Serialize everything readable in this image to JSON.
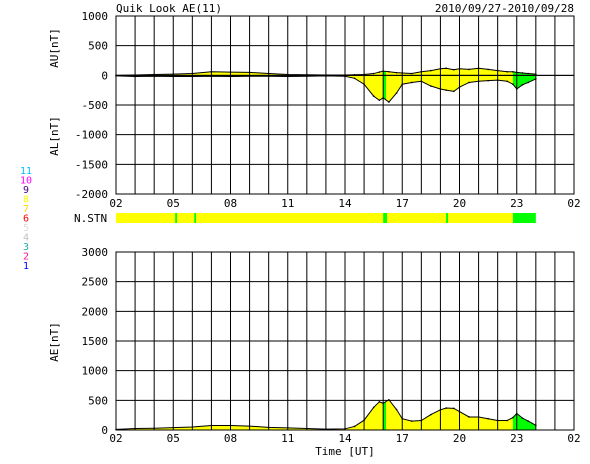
{
  "header": {
    "title": "Quik Look AE(11)",
    "date_range": "2010/09/27-2010/09/28"
  },
  "station_legend": [
    "11",
    "10",
    "9",
    "8",
    "7",
    "6",
    "5",
    "4",
    "3",
    "2",
    "1"
  ],
  "colors": {
    "station_colors": [
      "#00bfff",
      "#ff00ff",
      "#4b0082",
      "#ffff00",
      "#ffd700",
      "#ff0000",
      "#dddddd",
      "#c0c0c0",
      "#20b2aa",
      "#ff1493",
      "#0000ff"
    ],
    "fill_yellow": "#ffff00",
    "fill_green": "#00ff00",
    "axis": "#000000"
  },
  "chart_data": [
    {
      "type": "area",
      "panel": "AU/AL",
      "ylabel_top": "AU[nT]",
      "ylabel_bottom": "AL[nT]",
      "ylim": [
        -2000,
        1000
      ],
      "yticks": [
        1000,
        500,
        0,
        -500,
        -1000,
        -1500,
        -2000
      ],
      "xticks": [
        "02",
        "05",
        "08",
        "11",
        "14",
        "17",
        "20",
        "23",
        "02"
      ],
      "xlim_hours_ut": [
        2,
        26
      ],
      "grid": true,
      "au_series": {
        "x": [
          2,
          3,
          4,
          5,
          6,
          7,
          8,
          9,
          10,
          11,
          12,
          13,
          14,
          14.5,
          15,
          15.5,
          15.8,
          16,
          16.3,
          16.7,
          17,
          17.5,
          18,
          18.5,
          19,
          19.3,
          19.7,
          20,
          20.5,
          21,
          21.5,
          22,
          22.5,
          22.8,
          23,
          23.3,
          23.6,
          24
        ],
        "values": [
          0,
          5,
          15,
          20,
          30,
          60,
          55,
          50,
          30,
          15,
          10,
          5,
          5,
          10,
          15,
          30,
          55,
          70,
          60,
          45,
          40,
          30,
          60,
          80,
          110,
          120,
          95,
          110,
          100,
          120,
          100,
          80,
          60,
          60,
          50,
          40,
          30,
          20
        ]
      },
      "al_series": {
        "x": [
          2,
          3,
          4,
          5,
          6,
          7,
          8,
          9,
          10,
          11,
          12,
          13,
          14,
          14.5,
          15,
          15.5,
          15.8,
          16,
          16.3,
          16.7,
          17,
          17.5,
          18,
          18.5,
          19,
          19.3,
          19.7,
          20,
          20.5,
          21,
          21.5,
          22,
          22.5,
          22.8,
          23,
          23.3,
          23.6,
          24
        ],
        "values": [
          -10,
          -20,
          -15,
          -20,
          -20,
          -15,
          -20,
          -15,
          -15,
          -20,
          -15,
          -10,
          -15,
          -50,
          -150,
          -350,
          -420,
          -380,
          -450,
          -300,
          -150,
          -120,
          -100,
          -180,
          -230,
          -250,
          -270,
          -200,
          -120,
          -100,
          -90,
          -80,
          -100,
          -150,
          -230,
          -160,
          -120,
          -60
        ]
      },
      "green_intervals_hours_ut": [
        [
          16.0,
          16.15
        ],
        [
          22.8,
          24.0
        ]
      ]
    },
    {
      "type": "bar",
      "panel": "N.STN",
      "label": "N.STN",
      "note": "station-count color bar",
      "segments": [
        {
          "from": 2.0,
          "to": 5.1,
          "color_key": "yellow"
        },
        {
          "from": 5.1,
          "to": 5.2,
          "color_key": "green"
        },
        {
          "from": 5.2,
          "to": 6.1,
          "color_key": "yellow"
        },
        {
          "from": 6.1,
          "to": 6.2,
          "color_key": "green"
        },
        {
          "from": 6.2,
          "to": 16.0,
          "color_key": "yellow"
        },
        {
          "from": 16.0,
          "to": 16.2,
          "color_key": "green"
        },
        {
          "from": 16.2,
          "to": 19.3,
          "color_key": "yellow"
        },
        {
          "from": 19.3,
          "to": 19.4,
          "color_key": "green"
        },
        {
          "from": 19.4,
          "to": 22.8,
          "color_key": "yellow"
        },
        {
          "from": 22.8,
          "to": 24.0,
          "color_key": "green"
        }
      ]
    },
    {
      "type": "area",
      "panel": "AE",
      "ylabel": "AE[nT]",
      "xlabel": "Time [UT]",
      "ylim": [
        0,
        3000
      ],
      "yticks": [
        3000,
        2500,
        2000,
        1500,
        1000,
        500,
        0
      ],
      "xticks": [
        "02",
        "05",
        "08",
        "11",
        "14",
        "17",
        "20",
        "23",
        "02"
      ],
      "xlim_hours_ut": [
        2,
        26
      ],
      "grid": true,
      "series": {
        "x": [
          2,
          3,
          4,
          5,
          6,
          7,
          8,
          9,
          10,
          11,
          12,
          13,
          14,
          14.5,
          15,
          15.5,
          15.8,
          16,
          16.3,
          16.7,
          17,
          17.5,
          18,
          18.5,
          19,
          19.3,
          19.7,
          20,
          20.5,
          21,
          21.5,
          22,
          22.5,
          22.8,
          23,
          23.3,
          23.6,
          24
        ],
        "values": [
          10,
          25,
          30,
          40,
          50,
          75,
          75,
          65,
          45,
          35,
          25,
          15,
          20,
          60,
          165,
          380,
          475,
          450,
          510,
          345,
          190,
          150,
          160,
          260,
          340,
          370,
          365,
          310,
          220,
          220,
          190,
          160,
          160,
          210,
          280,
          200,
          150,
          80
        ]
      },
      "green_intervals_hours_ut": [
        [
          16.0,
          16.15
        ],
        [
          22.8,
          24.0
        ]
      ]
    }
  ]
}
